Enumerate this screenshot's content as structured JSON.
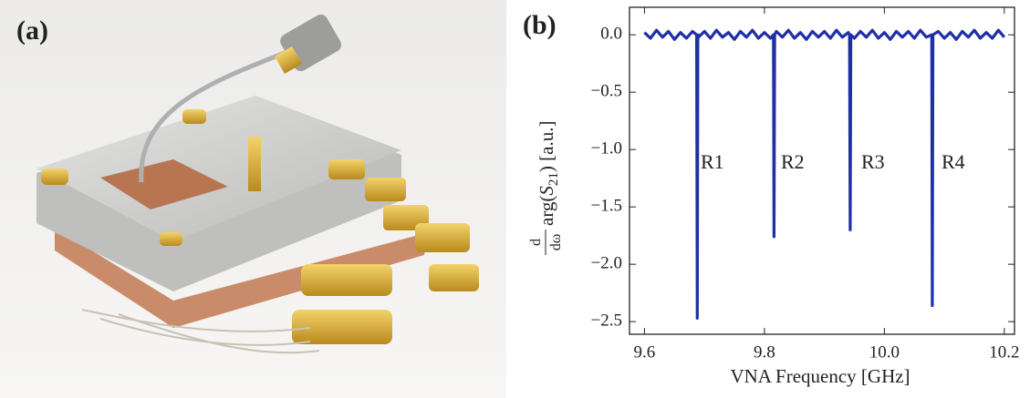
{
  "panels": {
    "a": "(a)",
    "b": "(b)"
  },
  "chart_data": {
    "type": "line",
    "xlabel": "VNA Frequency [GHz]",
    "ylabel": {
      "num": "d",
      "den": "dω",
      "pre": "arg(",
      "sym": "S",
      "sub": "21",
      "post": ") [a.u.]"
    },
    "color": "#1f2fa6",
    "x": [
      9.6,
      9.61,
      9.62,
      9.63,
      9.64,
      9.65,
      9.66,
      9.67,
      9.68,
      9.687,
      9.688,
      9.689,
      9.69,
      9.7,
      9.71,
      9.72,
      9.73,
      9.74,
      9.75,
      9.76,
      9.77,
      9.78,
      9.79,
      9.8,
      9.81,
      9.815,
      9.816,
      9.817,
      9.82,
      9.83,
      9.84,
      9.85,
      9.86,
      9.87,
      9.88,
      9.89,
      9.9,
      9.91,
      9.92,
      9.93,
      9.94,
      9.942,
      9.943,
      9.944,
      9.95,
      9.96,
      9.97,
      9.98,
      9.99,
      10.0,
      10.01,
      10.02,
      10.03,
      10.04,
      10.05,
      10.06,
      10.07,
      10.079,
      10.08,
      10.081,
      10.09,
      10.1,
      10.11,
      10.12,
      10.13,
      10.14,
      10.15,
      10.16,
      10.17,
      10.18,
      10.19,
      10.2
    ],
    "values": [
      0.02,
      -0.03,
      0.04,
      -0.02,
      0.03,
      -0.04,
      0.02,
      -0.03,
      0.03,
      0.0,
      -2.47,
      0.0,
      -0.02,
      0.03,
      -0.03,
      0.04,
      -0.02,
      0.02,
      -0.04,
      0.03,
      -0.02,
      0.04,
      -0.03,
      0.02,
      -0.03,
      0.0,
      -1.76,
      0.0,
      0.03,
      -0.02,
      0.04,
      -0.03,
      0.02,
      -0.04,
      0.03,
      -0.02,
      0.03,
      -0.03,
      0.04,
      -0.02,
      0.02,
      0.0,
      -1.7,
      0.0,
      -0.03,
      0.03,
      -0.02,
      0.04,
      -0.03,
      0.02,
      -0.04,
      0.03,
      -0.02,
      0.03,
      -0.03,
      0.04,
      -0.02,
      0.0,
      -2.36,
      0.0,
      0.03,
      -0.03,
      0.02,
      -0.04,
      0.03,
      -0.02,
      0.04,
      -0.03,
      0.02,
      -0.03,
      0.04,
      -0.02
    ],
    "annotations": [
      "R1",
      "R2",
      "R3",
      "R4"
    ],
    "xlim": [
      9.575,
      10.217
    ],
    "ylim": [
      -2.61,
      0.24
    ],
    "xticks": [
      9.6,
      9.8,
      {
        "value": 10.0,
        "label": "10.0"
      },
      10.2
    ],
    "yticks": [
      {
        "value": 0,
        "label": "0.0"
      },
      {
        "value": -0.5,
        "label": "−0.5"
      },
      {
        "value": -1.0,
        "label": "−1.0"
      },
      {
        "value": -1.5,
        "label": "−1.5"
      },
      {
        "value": -2.0,
        "label": "−2.0"
      },
      {
        "value": -2.5,
        "label": "−2.5"
      }
    ]
  }
}
